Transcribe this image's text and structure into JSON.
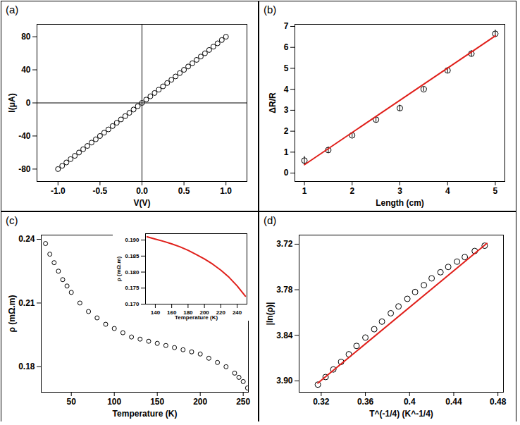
{
  "chart_data": [
    {
      "type": "scatter",
      "title": "(a)",
      "xlabel": "V(V)",
      "ylabel": "I(μA)",
      "xlim": [
        -1.25,
        1.25
      ],
      "xticks": [
        {
          "value": -1,
          "label": "-1.0"
        },
        {
          "value": -0.5,
          "label": "-0.5"
        },
        {
          "value": 0,
          "label": "0.0"
        },
        {
          "value": 0.5,
          "label": "0.5"
        },
        {
          "value": 1,
          "label": "1.0"
        }
      ],
      "ylim": [
        -95,
        95
      ],
      "yticks": [
        -80,
        -40,
        0,
        40,
        80
      ],
      "grid": false,
      "series": [
        {
          "type": "scatter",
          "color": "#000000",
          "marker": "open_circle",
          "x": [
            -1.0,
            -0.95,
            -0.9,
            -0.85,
            -0.8,
            -0.75,
            -0.7,
            -0.65,
            -0.6,
            -0.55,
            -0.5,
            -0.45,
            -0.4,
            -0.35,
            -0.3,
            -0.25,
            -0.2,
            -0.15,
            -0.1,
            -0.05,
            0,
            0.05,
            0.1,
            0.15,
            0.2,
            0.25,
            0.3,
            0.35,
            0.4,
            0.45,
            0.5,
            0.55,
            0.6,
            0.65,
            0.7,
            0.75,
            0.8,
            0.85,
            0.9,
            0.95,
            1.0
          ],
          "values": [
            -80,
            -76,
            -72,
            -68,
            -64,
            -60,
            -56,
            -52,
            -48,
            -44,
            -40,
            -36,
            -32,
            -28,
            -24,
            -20,
            -16,
            -12,
            -8,
            -4,
            0,
            4,
            8,
            12,
            16,
            20,
            24,
            28,
            32,
            36,
            40,
            44,
            48,
            52,
            56,
            60,
            64,
            68,
            72,
            76,
            80
          ]
        }
      ]
    },
    {
      "type": "scatter",
      "title": "(b)",
      "xlabel": "Length (cm)",
      "ylabel": "ΔR/R",
      "xlim": [
        0.8,
        5.2
      ],
      "xticks": [
        1,
        2,
        3,
        4,
        5
      ],
      "ylim": [
        -0.4,
        7.1
      ],
      "yticks": [
        0,
        1,
        2,
        3,
        4,
        5,
        6,
        7
      ],
      "grid": false,
      "series": [
        {
          "type": "scatter",
          "color": "#000000",
          "marker": "open_circle",
          "x": [
            1,
            1.5,
            2,
            2.5,
            3,
            3.5,
            4,
            4.5,
            5
          ],
          "values": [
            0.6,
            1.1,
            1.8,
            2.55,
            3.1,
            4.0,
            4.9,
            5.7,
            6.65
          ],
          "errors": [
            0.2,
            0.15,
            0.1,
            0.12,
            0.15,
            0.1,
            0.12,
            0.15,
            0.18
          ]
        },
        {
          "type": "line",
          "color": "#e0201b",
          "x": [
            1,
            5
          ],
          "values": [
            0.4,
            6.55
          ]
        }
      ]
    },
    {
      "type": "scatter",
      "title": "(c)",
      "xlabel": "Temperature (K)",
      "ylabel": "ρ (mΩ.m)",
      "xlim": [
        15,
        256
      ],
      "xticks": [
        50,
        100,
        150,
        200,
        250
      ],
      "ylim": [
        0.168,
        0.242
      ],
      "yticks": [
        0.18,
        0.21,
        0.24
      ],
      "grid": false,
      "series": [
        {
          "type": "scatter",
          "color": "#000000",
          "marker": "open_circle",
          "x": [
            20,
            25,
            30,
            35,
            40,
            45,
            50,
            60,
            70,
            80,
            90,
            100,
            110,
            120,
            130,
            140,
            150,
            160,
            170,
            180,
            190,
            200,
            210,
            220,
            230,
            240,
            245,
            250,
            255
          ],
          "values": [
            0.238,
            0.233,
            0.229,
            0.225,
            0.221,
            0.218,
            0.215,
            0.21,
            0.206,
            0.203,
            0.2,
            0.198,
            0.196,
            0.194,
            0.193,
            0.192,
            0.191,
            0.19,
            0.189,
            0.188,
            0.187,
            0.186,
            0.184,
            0.182,
            0.18,
            0.177,
            0.175,
            0.173,
            0.17
          ]
        }
      ],
      "inset": {
        "type": "line",
        "xlabel": "Temperature (K)",
        "ylabel": "ρ (mΩ.m)",
        "xlim": [
          128,
          252
        ],
        "xticks": [
          140,
          160,
          180,
          200,
          220,
          240
        ],
        "ylim": [
          0.17,
          0.192
        ],
        "yticks": [
          {
            "value": 0.17,
            "label": "0.170"
          },
          0.175,
          {
            "value": 0.18,
            "label": "0.180"
          },
          0.185,
          {
            "value": 0.19,
            "label": "0.190"
          }
        ],
        "grid": false,
        "series": [
          {
            "type": "line",
            "color": "#e0201b",
            "x": [
              130,
              140,
              150,
              160,
              170,
              180,
              190,
              200,
              210,
              220,
              230,
              240,
              250
            ],
            "values": [
              0.191,
              0.1903,
              0.1896,
              0.1888,
              0.1879,
              0.1868,
              0.1855,
              0.1841,
              0.1825,
              0.1806,
              0.1784,
              0.1757,
              0.1725
            ]
          }
        ]
      }
    },
    {
      "type": "scatter",
      "title": "(d)",
      "xlabel": "T^(-1/4) (K^-1/4)",
      "ylabel": "|ln(ρ)|",
      "xlim": [
        0.3,
        0.485
      ],
      "xticks": [
        0.32,
        0.36,
        0.4,
        0.44,
        0.48
      ],
      "ylim": [
        3.915,
        3.708
      ],
      "yticks": [
        3.72,
        3.78,
        3.84,
        {
          "value": 3.9,
          "label": "3.90"
        }
      ],
      "grid": false,
      "series": [
        {
          "type": "scatter",
          "color": "#000000",
          "marker": "open_circle",
          "x": [
            0.317,
            0.324,
            0.331,
            0.338,
            0.345,
            0.352,
            0.36,
            0.368,
            0.375,
            0.383,
            0.39,
            0.398,
            0.405,
            0.413,
            0.42,
            0.428,
            0.435,
            0.443,
            0.45,
            0.459,
            0.468
          ],
          "values": [
            3.905,
            3.895,
            3.885,
            3.875,
            3.865,
            3.854,
            3.843,
            3.832,
            3.822,
            3.811,
            3.802,
            3.792,
            3.783,
            3.774,
            3.765,
            3.757,
            3.75,
            3.743,
            3.737,
            3.729,
            3.722
          ]
        },
        {
          "type": "line",
          "color": "#e0201b",
          "x": [
            0.317,
            0.47
          ],
          "values": [
            3.903,
            3.719
          ]
        }
      ]
    }
  ]
}
